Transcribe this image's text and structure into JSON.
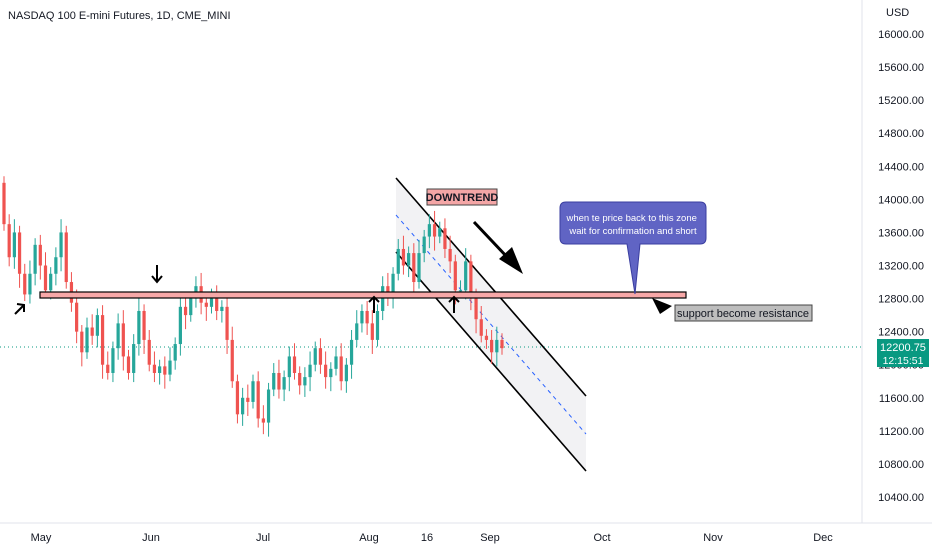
{
  "header": {
    "title": "NASDAQ 100 E-mini Futures, 1D, CME_MINI"
  },
  "currency": "USD",
  "price_axis": {
    "ticks": [
      "16000.00",
      "15600.00",
      "15200.00",
      "14800.00",
      "14400.00",
      "14000.00",
      "13600.00",
      "13200.00",
      "12800.00",
      "12400.00",
      "12000.00",
      "11600.00",
      "11200.00",
      "10800.00",
      "10400.00"
    ]
  },
  "time_axis": {
    "ticks": [
      "May",
      "Jun",
      "Jul",
      "Aug",
      "16",
      "Sep",
      "Oct",
      "Nov",
      "Dec"
    ]
  },
  "last_price": {
    "value": "12200.75",
    "countdown": "12:15:51",
    "color": "#089981"
  },
  "colors": {
    "up": "#26a69a",
    "down": "#ef5350",
    "zone": "#f7a8a8"
  },
  "annotations": {
    "downtrend": "DOWNTREND",
    "note": "when te price back to this zone wait for confirmation and short",
    "support": "support become resistance"
  },
  "chart_data": {
    "type": "candlestick",
    "symbol": "NASDAQ 100 E-mini Futures",
    "interval": "1D",
    "exchange": "CME_MINI",
    "y_range": [
      10100,
      16250
    ],
    "key_level": 12860,
    "last": 12200.75,
    "candles": [
      {
        "o": 14200,
        "c": 13700
      },
      {
        "o": 13700,
        "c": 13300
      },
      {
        "o": 13300,
        "c": 13600
      },
      {
        "o": 13600,
        "c": 13100
      },
      {
        "o": 13100,
        "c": 12850
      },
      {
        "o": 12850,
        "c": 13100
      },
      {
        "o": 13100,
        "c": 13450
      },
      {
        "o": 13450,
        "c": 13200
      },
      {
        "o": 13200,
        "c": 12900
      },
      {
        "o": 12900,
        "c": 13100
      },
      {
        "o": 13100,
        "c": 13300
      },
      {
        "o": 13300,
        "c": 13600
      },
      {
        "o": 13600,
        "c": 13000
      },
      {
        "o": 13000,
        "c": 12750
      },
      {
        "o": 12750,
        "c": 12400
      },
      {
        "o": 12400,
        "c": 12150
      },
      {
        "o": 12150,
        "c": 12450
      },
      {
        "o": 12450,
        "c": 12350
      },
      {
        "o": 12350,
        "c": 12600
      },
      {
        "o": 12600,
        "c": 12000
      },
      {
        "o": 12000,
        "c": 11900
      },
      {
        "o": 11900,
        "c": 12200
      },
      {
        "o": 12200,
        "c": 12500
      },
      {
        "o": 12500,
        "c": 12100
      },
      {
        "o": 12100,
        "c": 11900
      },
      {
        "o": 11900,
        "c": 12250
      },
      {
        "o": 12250,
        "c": 12650
      },
      {
        "o": 12650,
        "c": 12300
      },
      {
        "o": 12300,
        "c": 12000
      },
      {
        "o": 12000,
        "c": 11900
      },
      {
        "o": 11900,
        "c": 11980
      },
      {
        "o": 11980,
        "c": 11880
      },
      {
        "o": 11880,
        "c": 12050
      },
      {
        "o": 12050,
        "c": 12250
      },
      {
        "o": 12250,
        "c": 12700
      },
      {
        "o": 12700,
        "c": 12600
      },
      {
        "o": 12600,
        "c": 12800
      },
      {
        "o": 12800,
        "c": 12950
      },
      {
        "o": 12950,
        "c": 12750
      },
      {
        "o": 12750,
        "c": 12700
      },
      {
        "o": 12700,
        "c": 12800
      },
      {
        "o": 12800,
        "c": 12650
      },
      {
        "o": 12650,
        "c": 12700
      },
      {
        "o": 12700,
        "c": 12300
      },
      {
        "o": 12300,
        "c": 11800
      },
      {
        "o": 11800,
        "c": 11400
      },
      {
        "o": 11400,
        "c": 11600
      },
      {
        "o": 11600,
        "c": 11550
      },
      {
        "o": 11550,
        "c": 11800
      },
      {
        "o": 11800,
        "c": 11350
      },
      {
        "o": 11350,
        "c": 11300
      },
      {
        "o": 11300,
        "c": 11700
      },
      {
        "o": 11700,
        "c": 11900
      },
      {
        "o": 11900,
        "c": 11700
      },
      {
        "o": 11700,
        "c": 11850
      },
      {
        "o": 11850,
        "c": 12100
      },
      {
        "o": 12100,
        "c": 11900
      },
      {
        "o": 11900,
        "c": 11750
      },
      {
        "o": 11750,
        "c": 11850
      },
      {
        "o": 11850,
        "c": 12000
      },
      {
        "o": 12000,
        "c": 12200
      },
      {
        "o": 12200,
        "c": 12000
      },
      {
        "o": 12000,
        "c": 11850
      },
      {
        "o": 11850,
        "c": 11950
      },
      {
        "o": 11950,
        "c": 12100
      },
      {
        "o": 12100,
        "c": 11800
      },
      {
        "o": 11800,
        "c": 12000
      },
      {
        "o": 12000,
        "c": 12300
      },
      {
        "o": 12300,
        "c": 12500
      },
      {
        "o": 12500,
        "c": 12650
      },
      {
        "o": 12650,
        "c": 12500
      },
      {
        "o": 12500,
        "c": 12300
      },
      {
        "o": 12300,
        "c": 12650
      },
      {
        "o": 12650,
        "c": 12950
      },
      {
        "o": 12950,
        "c": 12850
      },
      {
        "o": 12850,
        "c": 13100
      },
      {
        "o": 13100,
        "c": 13400
      },
      {
        "o": 13400,
        "c": 13200
      },
      {
        "o": 13200,
        "c": 13350
      },
      {
        "o": 13350,
        "c": 13000
      },
      {
        "o": 13000,
        "c": 13350
      },
      {
        "o": 13350,
        "c": 13550
      },
      {
        "o": 13550,
        "c": 13700
      },
      {
        "o": 13700,
        "c": 13550
      },
      {
        "o": 13550,
        "c": 13650
      },
      {
        "o": 13650,
        "c": 13400
      },
      {
        "o": 13400,
        "c": 13250
      },
      {
        "o": 13250,
        "c": 12900
      },
      {
        "o": 12900,
        "c": 12900
      },
      {
        "o": 12900,
        "c": 13250
      },
      {
        "o": 13250,
        "c": 12800
      },
      {
        "o": 12800,
        "c": 12550
      },
      {
        "o": 12550,
        "c": 12350
      },
      {
        "o": 12350,
        "c": 12300
      },
      {
        "o": 12300,
        "c": 12150
      },
      {
        "o": 12150,
        "c": 12300
      },
      {
        "o": 12300,
        "c": 12200
      }
    ]
  }
}
